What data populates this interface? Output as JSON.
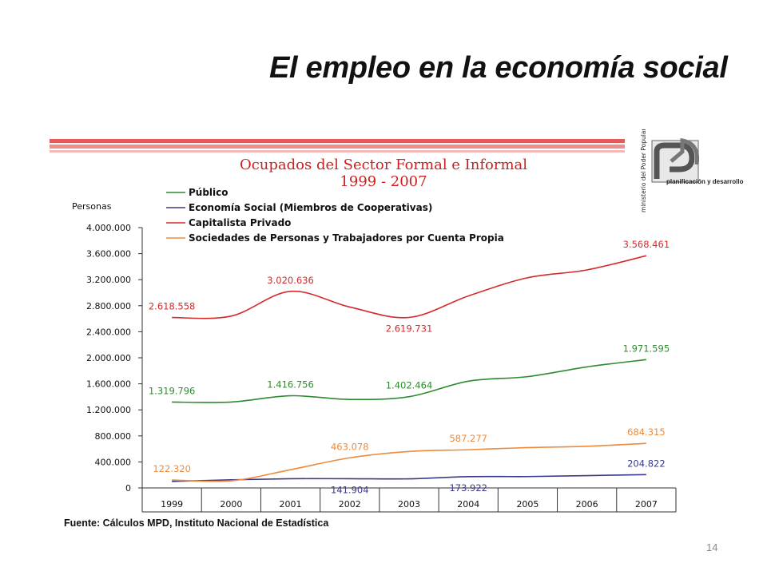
{
  "slide": {
    "title": "El empleo en la economía social",
    "source": "Fuente: Cálculos MPD, Instituto Nacional de Estadística",
    "page_number": "14",
    "logo_text": {
      "vertical": "ministerio del Poder Popular para la",
      "org": "planificación y desarrollo"
    }
  },
  "colors": {
    "publico": "#2e8b2e",
    "economia_social": "#3a3a8c",
    "capitalista": "#d42a2a",
    "sociedades": "#ee8a3a",
    "title": "#cc2020",
    "axis": "#333333"
  },
  "chart_data": {
    "type": "line",
    "title": "Ocupados del Sector Formal e Informal",
    "subtitle": "1999 - 2007",
    "ylabel": "Personas",
    "xlabel": "",
    "ylim": [
      0,
      4000000
    ],
    "y_ticks": [
      {
        "value": 0,
        "label": "0"
      },
      {
        "value": 400000,
        "label": "400.000"
      },
      {
        "value": 800000,
        "label": "800.000"
      },
      {
        "value": 1200000,
        "label": "1.200.000"
      },
      {
        "value": 1600000,
        "label": "1.600.000"
      },
      {
        "value": 2000000,
        "label": "2.000.000"
      },
      {
        "value": 2400000,
        "label": "2.400.000"
      },
      {
        "value": 2800000,
        "label": "2.800.000"
      },
      {
        "value": 3200000,
        "label": "3.200.000"
      },
      {
        "value": 3600000,
        "label": "3.600.000"
      },
      {
        "value": 4000000,
        "label": "4.000.000"
      }
    ],
    "categories": [
      "1999",
      "2000",
      "2001",
      "2002",
      "2003",
      "2004",
      "2005",
      "2006",
      "2007"
    ],
    "legend_position": "top",
    "grid": false,
    "series": [
      {
        "key": "publico",
        "name": "Público",
        "values": [
          1319796,
          1320000,
          1416756,
          1360000,
          1402464,
          1640000,
          1710000,
          1860000,
          1971595
        ],
        "labels": [
          {
            "index": 0,
            "text": "1.319.796",
            "pos": "above"
          },
          {
            "index": 2,
            "text": "1.416.756",
            "pos": "above"
          },
          {
            "index": 4,
            "text": "1.402.464",
            "pos": "above"
          },
          {
            "index": 8,
            "text": "1.971.595",
            "pos": "above"
          }
        ]
      },
      {
        "key": "economia_social",
        "name": "Economía Social (Miembros de Cooperativas)",
        "values": [
          100000,
          125000,
          141904,
          141904,
          140000,
          173922,
          175000,
          190000,
          204822
        ],
        "labels": [
          {
            "index": 3,
            "text": "141.904",
            "pos": "below"
          },
          {
            "index": 5,
            "text": "173.922",
            "pos": "below"
          },
          {
            "index": 8,
            "text": "204.822",
            "pos": "above"
          }
        ]
      },
      {
        "key": "capitalista",
        "name": "Capitalista Privado",
        "values": [
          2618558,
          2640000,
          3020636,
          2780000,
          2619731,
          2950000,
          3230000,
          3350000,
          3568461
        ],
        "labels": [
          {
            "index": 0,
            "text": "2.618.558",
            "pos": "above"
          },
          {
            "index": 2,
            "text": "3.020.636",
            "pos": "above"
          },
          {
            "index": 4,
            "text": "2.619.731",
            "pos": "below"
          },
          {
            "index": 8,
            "text": "3.568.461",
            "pos": "above"
          }
        ]
      },
      {
        "key": "sociedades",
        "name": "Sociedades de Personas y Trabajadores por Cuenta Propia",
        "values": [
          122320,
          110000,
          280000,
          463078,
          560000,
          587277,
          620000,
          640000,
          684315
        ],
        "labels": [
          {
            "index": 0,
            "text": "122.320",
            "pos": "above"
          },
          {
            "index": 3,
            "text": "463.078",
            "pos": "above"
          },
          {
            "index": 5,
            "text": "587.277",
            "pos": "above"
          },
          {
            "index": 8,
            "text": "684.315",
            "pos": "above"
          }
        ]
      }
    ]
  }
}
